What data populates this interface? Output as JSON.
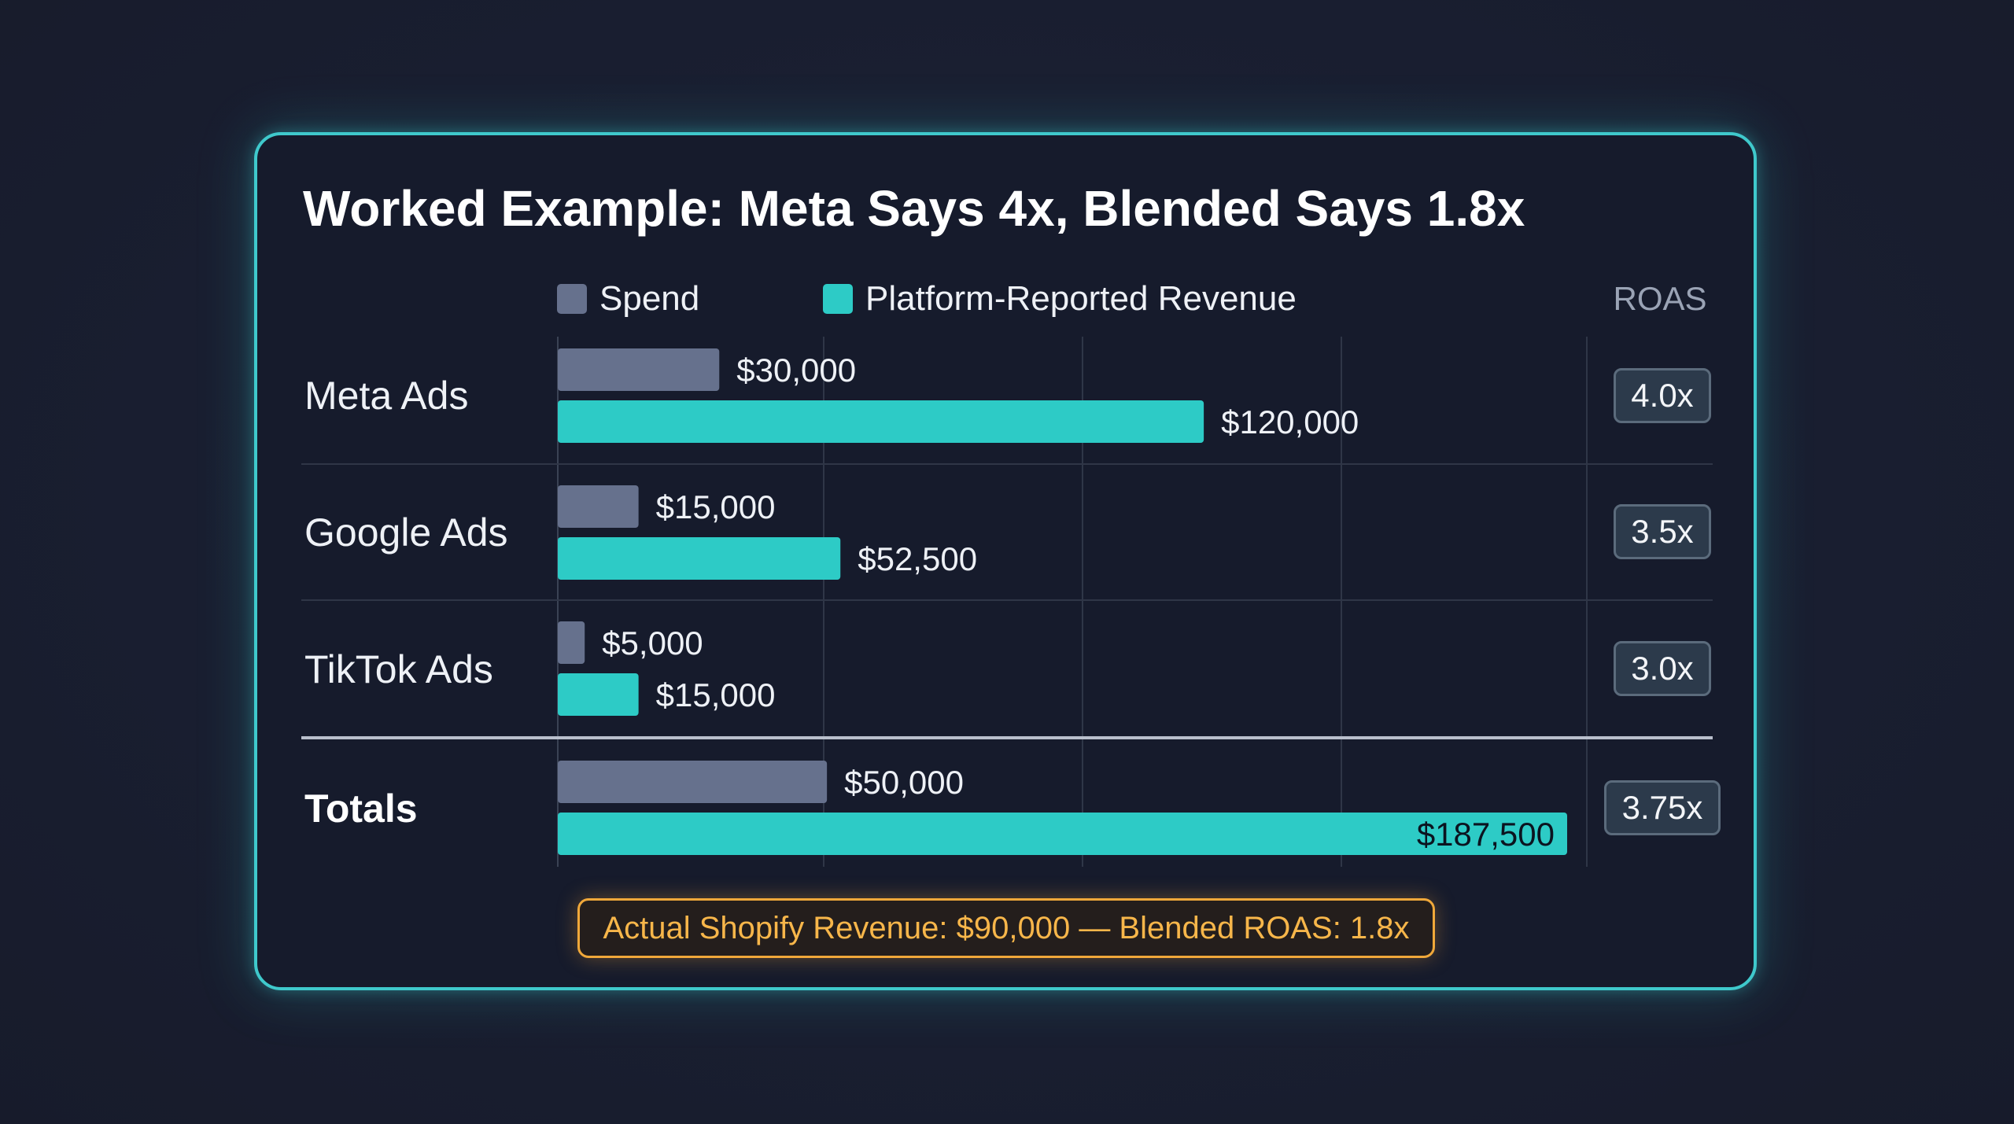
{
  "title": "Worked Example: Meta Says 4x, Blended Says 1.8x",
  "colors": {
    "spend": "#66718d",
    "revenue": "#2dcbc6",
    "card_border": "#3fc9cc",
    "footer_accent": "#f0a83a",
    "grid": "#2f3647"
  },
  "legend": {
    "spend_label": "Spend",
    "revenue_label": "Platform-Reported Revenue"
  },
  "roas_header": "ROAS",
  "chart_data": {
    "type": "bar",
    "orientation": "horizontal",
    "categories": [
      "Meta Ads",
      "Google Ads",
      "TikTok Ads",
      "Totals"
    ],
    "series": [
      {
        "name": "Spend",
        "values": [
          30000,
          15000,
          5000,
          50000
        ],
        "labels": [
          "$30,000",
          "$15,000",
          "$5,000",
          "$50,000"
        ]
      },
      {
        "name": "Platform-Reported Revenue",
        "values": [
          120000,
          52500,
          15000,
          187500
        ],
        "labels": [
          "$120,000",
          "$52,500",
          "$15,000",
          "$187,500"
        ]
      }
    ],
    "roas": [
      "4.0x",
      "3.5x",
      "3.0x",
      "3.75x"
    ],
    "xlim": [
      0,
      190000
    ],
    "grid": true,
    "legend_position": "top"
  },
  "footer_note": "Actual Shopify Revenue: $90,000 — Blended ROAS: 1.8x"
}
